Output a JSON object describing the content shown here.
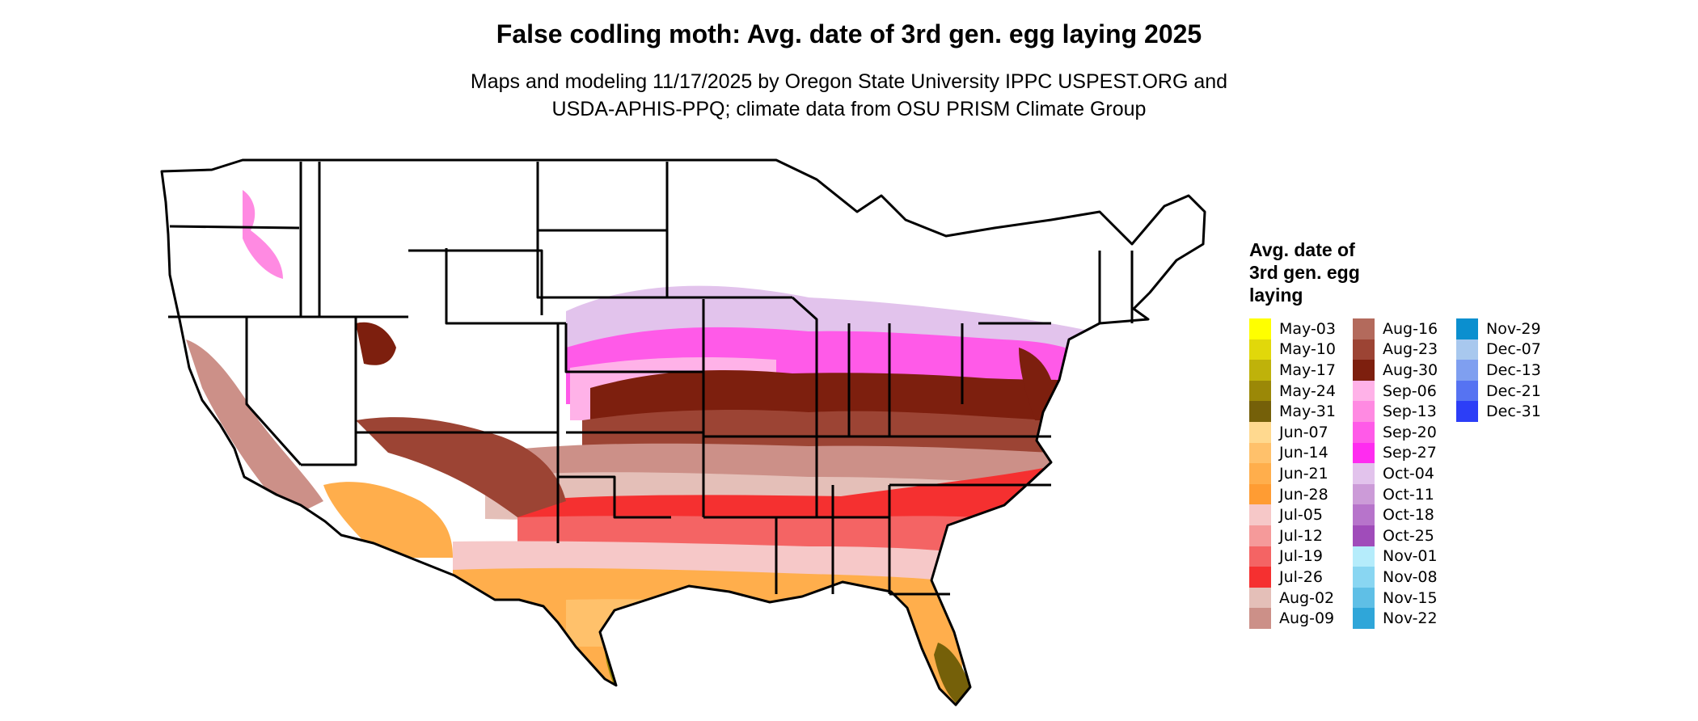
{
  "title": "False codling moth: Avg. date of 3rd gen. egg laying 2025",
  "subtitle_line1": "Maps and modeling 11/17/2025 by Oregon State University IPPC USPEST.ORG and",
  "subtitle_line2": "USDA-APHIS-PPQ; climate data from OSU PRISM Climate Group",
  "legend": {
    "title_lines": [
      "Avg. date of",
      "3rd gen. egg",
      "laying"
    ],
    "columns": [
      [
        {
          "label": "May-03",
          "color": "#ffff00"
        },
        {
          "label": "May-10",
          "color": "#e1d80a"
        },
        {
          "label": "May-17",
          "color": "#bfb20a"
        },
        {
          "label": "May-24",
          "color": "#9b8807"
        },
        {
          "label": "May-31",
          "color": "#756009"
        },
        {
          "label": "Jun-07",
          "color": "#ffd98f"
        },
        {
          "label": "Jun-14",
          "color": "#ffc16b"
        },
        {
          "label": "Jun-21",
          "color": "#ffae4c"
        },
        {
          "label": "Jun-28",
          "color": "#ff9c33"
        },
        {
          "label": "Jul-05",
          "color": "#f6c8c8"
        },
        {
          "label": "Jul-12",
          "color": "#f59a9a"
        },
        {
          "label": "Jul-19",
          "color": "#f46464"
        },
        {
          "label": "Jul-26",
          "color": "#f53030"
        },
        {
          "label": "Aug-02",
          "color": "#e4bfb8"
        },
        {
          "label": "Aug-09",
          "color": "#cc9088"
        }
      ],
      [
        {
          "label": "Aug-16",
          "color": "#b36a5c"
        },
        {
          "label": "Aug-23",
          "color": "#9c4434"
        },
        {
          "label": "Aug-30",
          "color": "#7d1f0e"
        },
        {
          "label": "Sep-06",
          "color": "#ffb2e8"
        },
        {
          "label": "Sep-13",
          "color": "#ff8ae2"
        },
        {
          "label": "Sep-20",
          "color": "#ff5ae8"
        },
        {
          "label": "Sep-27",
          "color": "#ff2cf0"
        },
        {
          "label": "Oct-04",
          "color": "#e2c3ec"
        },
        {
          "label": "Oct-11",
          "color": "#cc9bd8"
        },
        {
          "label": "Oct-18",
          "color": "#b774cb"
        },
        {
          "label": "Oct-25",
          "color": "#a04cba"
        },
        {
          "label": "Nov-01",
          "color": "#b5ecfb"
        },
        {
          "label": "Nov-08",
          "color": "#89d6f2"
        },
        {
          "label": "Nov-15",
          "color": "#5fbfe6"
        },
        {
          "label": "Nov-22",
          "color": "#2fa6d9"
        }
      ],
      [
        {
          "label": "Nov-29",
          "color": "#0b8fcf"
        },
        {
          "label": "Dec-07",
          "color": "#a8c8ee"
        },
        {
          "label": "Dec-13",
          "color": "#7f9ff0"
        },
        {
          "label": "Dec-21",
          "color": "#5673f2"
        },
        {
          "label": "Dec-31",
          "color": "#2c3ef7"
        }
      ]
    ]
  }
}
